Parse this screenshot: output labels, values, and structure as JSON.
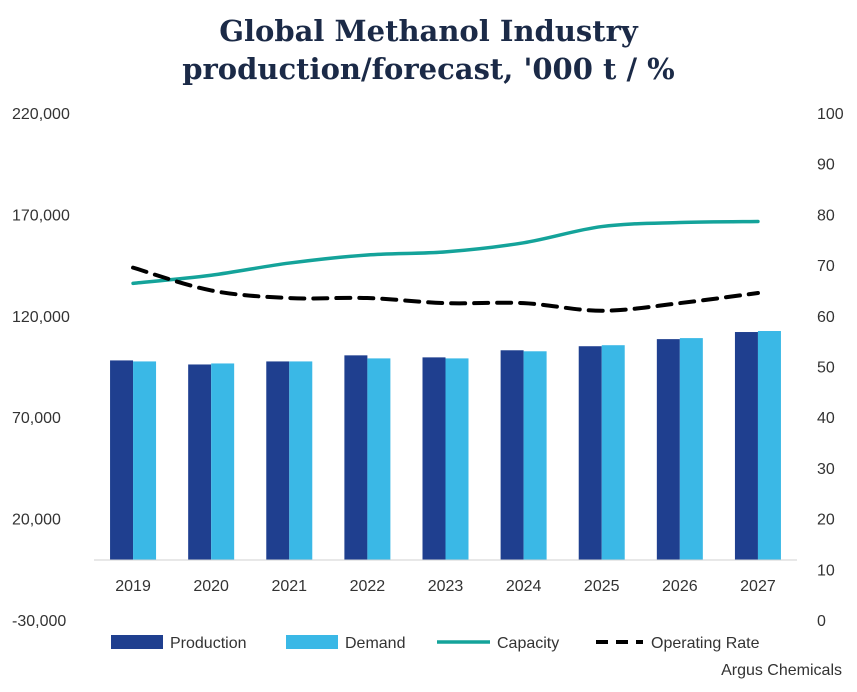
{
  "title_line1": "Global Methanol Industry",
  "title_line2": "production/forecast, '000 t / %",
  "source": "Argus Chemicals",
  "colors": {
    "production": "#1f3f8f",
    "demand": "#3ab8e6",
    "capacity": "#14a39a",
    "operating_rate": "#000000",
    "title": "#1b2a47"
  },
  "chart_data": {
    "type": "bar",
    "title": "Global Methanol Industry production/forecast, '000 t / %",
    "categories": [
      "2019",
      "2020",
      "2021",
      "2022",
      "2023",
      "2024",
      "2025",
      "2026",
      "2027"
    ],
    "y_left": {
      "ylim": [
        -30000,
        220000
      ],
      "ticks": [
        "220,000",
        "170,000",
        "120,000",
        "70,000",
        "20,000",
        "-30,000"
      ],
      "tick_values": [
        220000,
        170000,
        120000,
        70000,
        20000,
        -30000
      ]
    },
    "y_right": {
      "ylim": [
        0,
        100
      ],
      "ticks": [
        "100",
        "90",
        "80",
        "70",
        "60",
        "50",
        "40",
        "30",
        "20",
        "10",
        "0"
      ],
      "tick_values": [
        100,
        90,
        80,
        70,
        60,
        50,
        40,
        30,
        20,
        10,
        0
      ]
    },
    "series": [
      {
        "name": "Production",
        "kind": "bar",
        "axis": "left",
        "values": [
          98000,
          96000,
          97500,
          100500,
          99500,
          103000,
          105000,
          108500,
          112000
        ]
      },
      {
        "name": "Demand",
        "kind": "bar",
        "axis": "left",
        "values": [
          97500,
          96500,
          97500,
          99000,
          99000,
          102500,
          105500,
          109000,
          112500
        ]
      },
      {
        "name": "Capacity",
        "kind": "line",
        "axis": "left",
        "values": [
          136000,
          140000,
          146000,
          150000,
          151500,
          156000,
          164000,
          166000,
          166500
        ]
      },
      {
        "name": "Operating Rate",
        "kind": "dashed-line",
        "axis": "right",
        "values": [
          69.5,
          65,
          63.5,
          63.5,
          62.5,
          62.5,
          61,
          62.5,
          64.5
        ]
      }
    ],
    "legend": [
      "Production",
      "Demand",
      "Capacity",
      "Operating Rate"
    ],
    "legend_position": "bottom",
    "grid": false
  }
}
